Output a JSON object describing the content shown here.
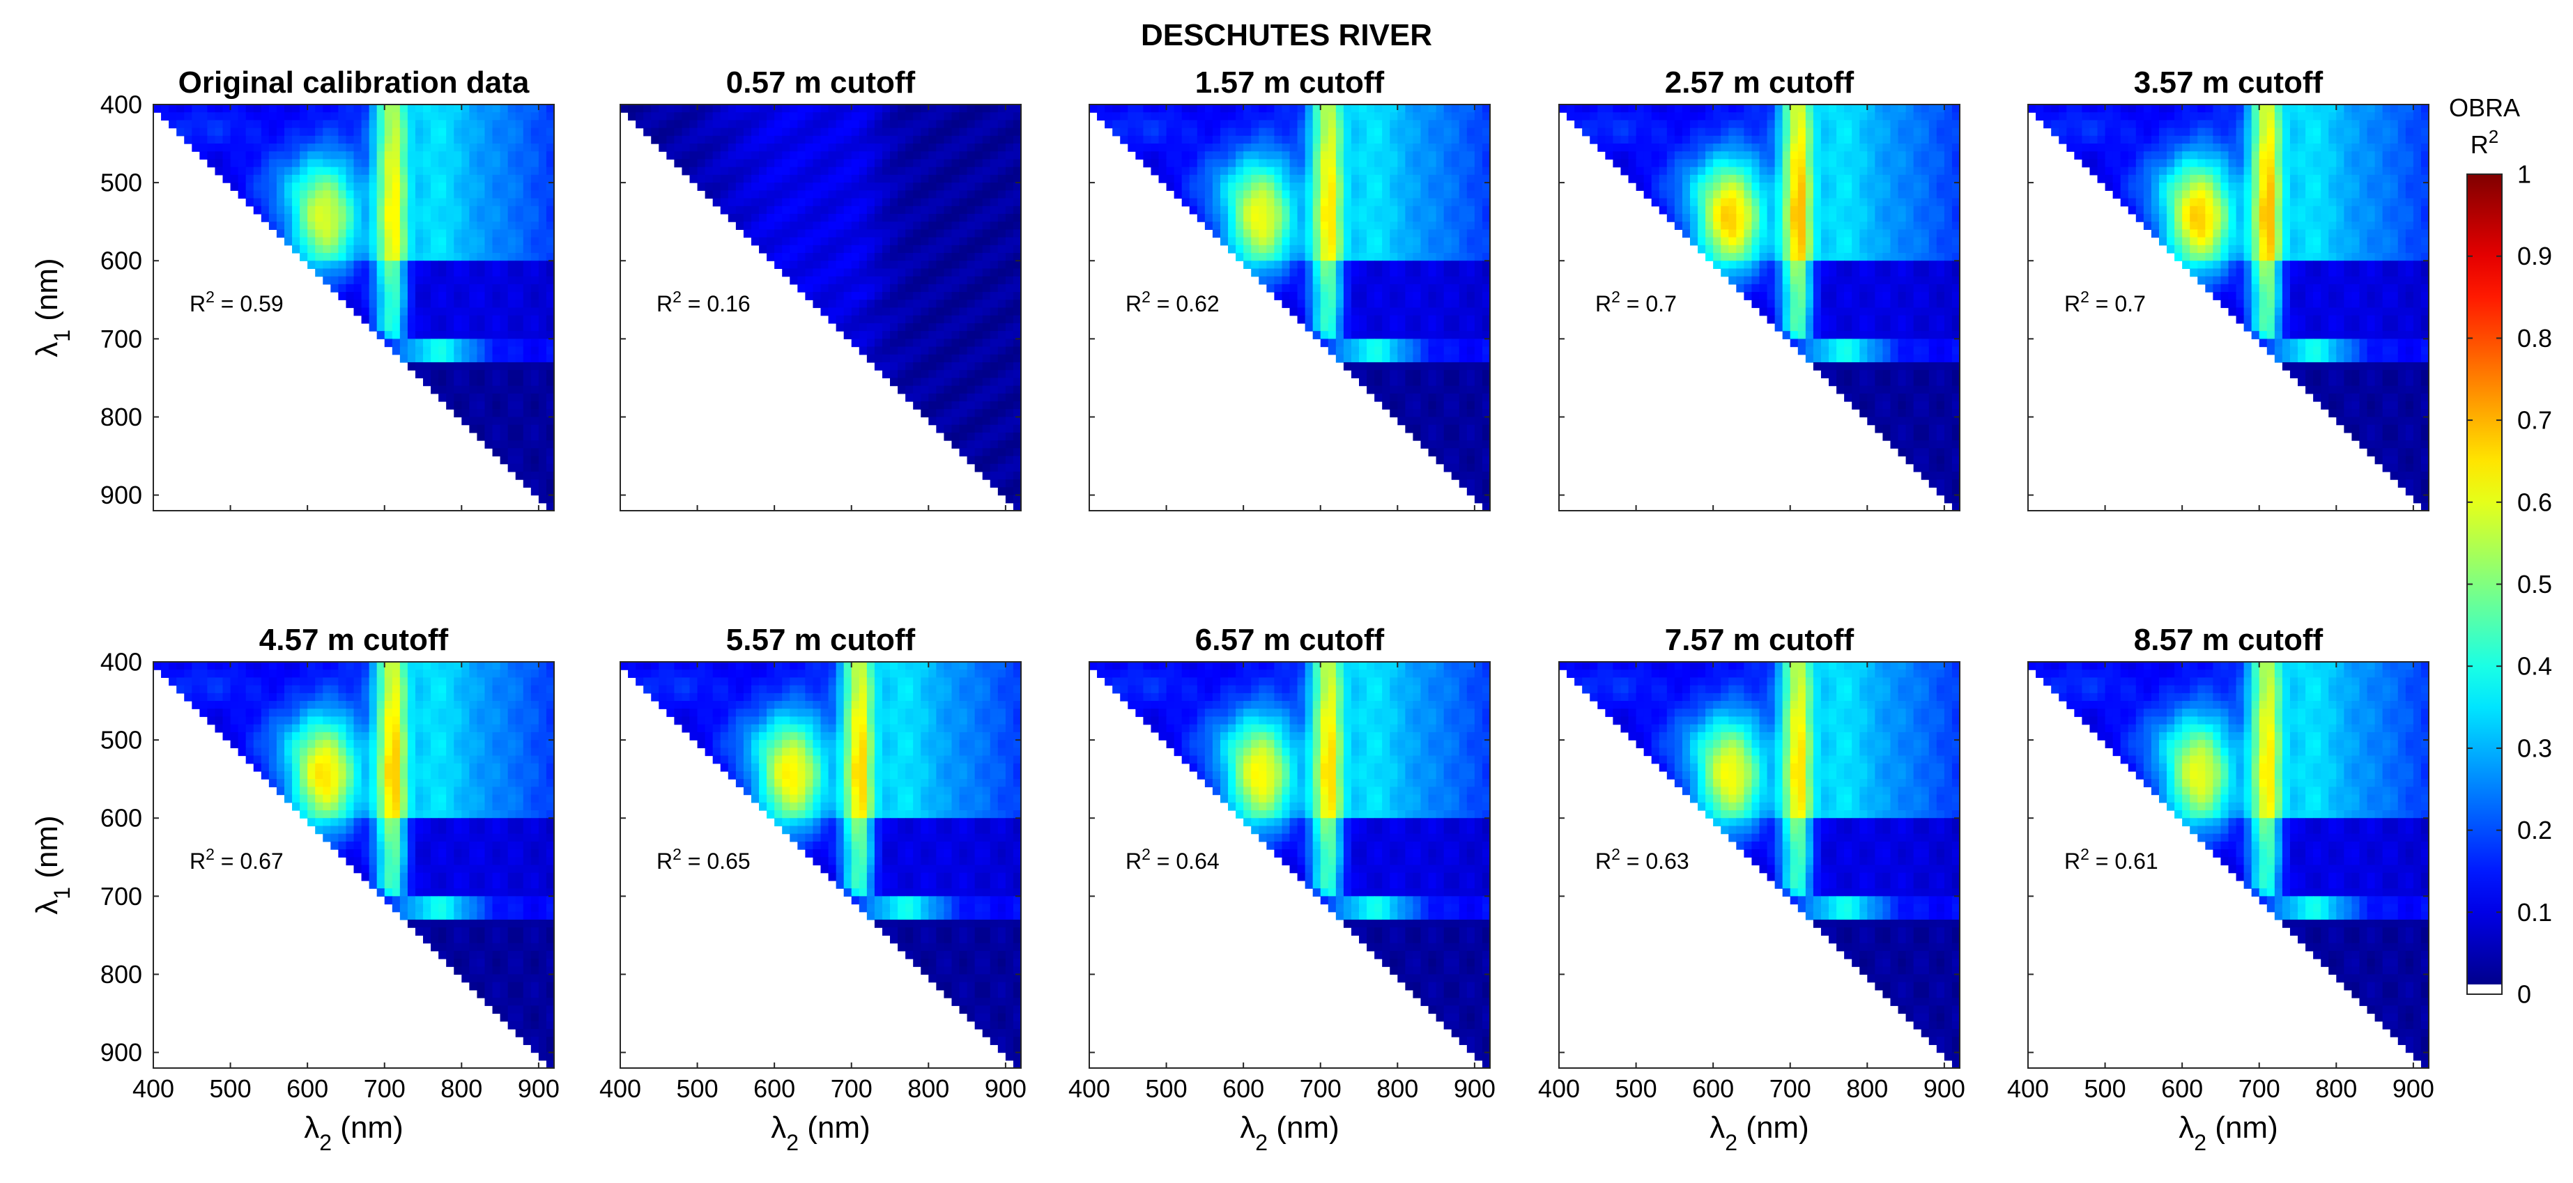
{
  "chart_data": {
    "type": "heatmap",
    "suptitle": "DESCHUTES RIVER",
    "xlabel": "λ",
    "xlabel_sub": "2",
    "ylabel": "λ",
    "ylabel_sub": "1",
    "unit": "(nm)",
    "x_ticks": [
      "400",
      "500",
      "600",
      "700",
      "800",
      "900"
    ],
    "y_ticks": [
      "400",
      "500",
      "600",
      "700",
      "800",
      "900"
    ],
    "xlim": [
      400,
      920
    ],
    "ylim": [
      400,
      920
    ],
    "colorbar": {
      "label_line1": "OBRA",
      "label_r": "R",
      "label_sup": "2",
      "range": [
        0,
        1
      ],
      "ticks": [
        "0",
        "0.1",
        "0.2",
        "0.3",
        "0.4",
        "0.5",
        "0.6",
        "0.7",
        "0.8",
        "0.9",
        "1"
      ],
      "colormap": "jet"
    },
    "panels": [
      {
        "title": "Original calibration data",
        "r2_label": "R",
        "r2_sup": "2",
        "r2_value": " = 0.59",
        "r2": 0.59
      },
      {
        "title": "0.57 m cutoff",
        "r2_label": "R",
        "r2_sup": "2",
        "r2_value": " = 0.16",
        "r2": 0.16
      },
      {
        "title": "1.57 m cutoff",
        "r2_label": "R",
        "r2_sup": "2",
        "r2_value": " = 0.62",
        "r2": 0.62
      },
      {
        "title": "2.57 m cutoff",
        "r2_label": "R",
        "r2_sup": "2",
        "r2_value": " = 0.7",
        "r2": 0.7
      },
      {
        "title": "3.57 m cutoff",
        "r2_label": "R",
        "r2_sup": "2",
        "r2_value": " = 0.7",
        "r2": 0.7
      },
      {
        "title": "4.57 m cutoff",
        "r2_label": "R",
        "r2_sup": "2",
        "r2_value": " = 0.67",
        "r2": 0.67
      },
      {
        "title": "5.57 m cutoff",
        "r2_label": "R",
        "r2_sup": "2",
        "r2_value": " = 0.65",
        "r2": 0.65
      },
      {
        "title": "6.57 m cutoff",
        "r2_label": "R",
        "r2_sup": "2",
        "r2_value": " = 0.64",
        "r2": 0.64
      },
      {
        "title": "7.57 m cutoff",
        "r2_label": "R",
        "r2_sup": "2",
        "r2_value": " = 0.63",
        "r2": 0.63
      },
      {
        "title": "8.57 m cutoff",
        "r2_label": "R",
        "r2_sup": "2",
        "r2_value": " = 0.61",
        "r2": 0.61
      }
    ]
  }
}
